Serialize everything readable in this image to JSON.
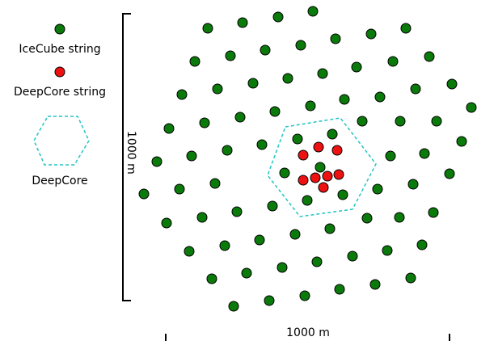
{
  "legend": {
    "icecube": {
      "label": "IceCube string",
      "color": "#0a7a0a"
    },
    "deepcore_string": {
      "label": "DeepCore string",
      "color": "#ee1111"
    },
    "deepcore_region": {
      "label": "DeepCore",
      "color": "#22c4c4"
    }
  },
  "scale": {
    "vertical_label": "1000 m",
    "horizontal_label": "1000 m"
  },
  "string_counts": {
    "icecube": 78,
    "deepcore": 8
  }
}
